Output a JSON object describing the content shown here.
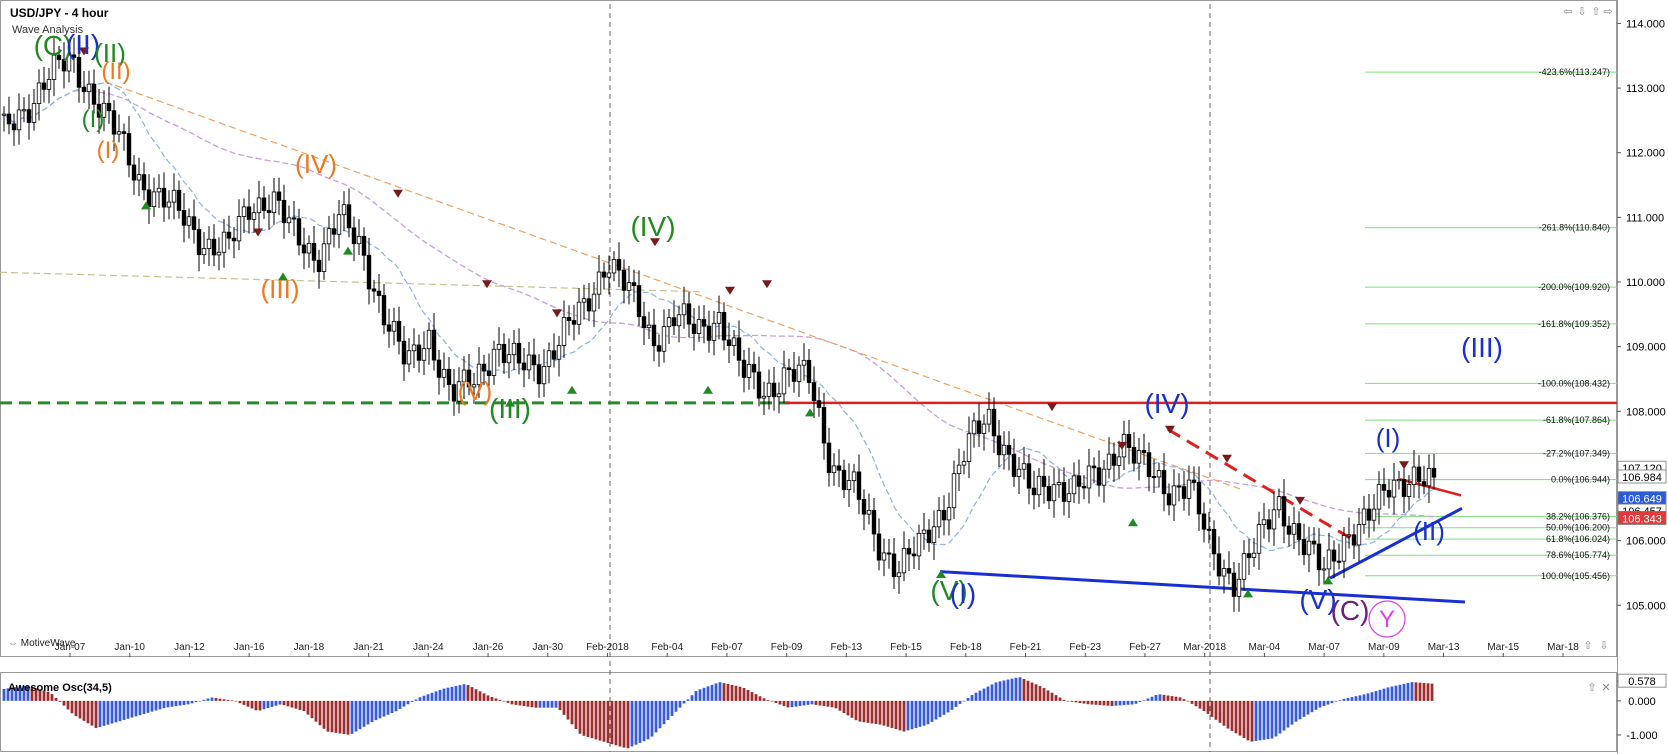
{
  "header": {
    "title": "USD/JPY - 4 hour",
    "subtitle": "Wave Analysis"
  },
  "branding": "MotiveWave",
  "oscillator": {
    "title": "Awesome Osc(34,5)",
    "ticks": [
      "0.578",
      "0.000",
      "-1.000"
    ]
  },
  "controls": {
    "nav_icons": [
      "arrow-left-icon",
      "double-down-icon",
      "double-up-icon",
      "arrow-right-icon"
    ],
    "zoom_icons": [
      "zoom-up-icon",
      "zoom-down-icon"
    ]
  },
  "colors": {
    "bull_bar": "#3a5bd9",
    "bear_bar": "#9b2d2d",
    "support": "#2a8a2a",
    "resistance": "#e02020",
    "trend": "#1a2fd1",
    "sma_fast": "#8fb0e8",
    "sma_slow": "#c8a0d8",
    "orange": "#f07820",
    "green_wave": "#1f8a1f",
    "purple": "#6a1f7a",
    "magenta": "#e040e0"
  },
  "chart_data": {
    "type": "line",
    "title": "USD/JPY - 4 hour",
    "y_axis": {
      "ticks": [
        "114.000",
        "113.000",
        "112.000",
        "111.000",
        "110.000",
        "109.000",
        "108.000",
        "107.000",
        "106.000",
        "105.000"
      ],
      "range": [
        104.2,
        114.3
      ]
    },
    "x_axis": {
      "labels": [
        "Jan-07",
        "Jan-10",
        "Jan-12",
        "Jan-16",
        "Jan-18",
        "Jan-21",
        "Jan-24",
        "Jan-26",
        "Jan-30",
        "Feb-2018",
        "Feb-04",
        "Feb-07",
        "Feb-09",
        "Feb-13",
        "Feb-15",
        "Feb-18",
        "Feb-21",
        "Feb-23",
        "Feb-27",
        "Mar-2018",
        "Mar-04",
        "Mar-07",
        "Mar-09",
        "Mar-13",
        "Mar-15",
        "Mar-18"
      ]
    },
    "series": [
      {
        "values": [
          112.3,
          112.7,
          113.2,
          113.4,
          112.9,
          112.3,
          111.6,
          111.3,
          111.0,
          110.6,
          110.5,
          111.2,
          111.3,
          110.7,
          110.4,
          111.0,
          110.5,
          109.5,
          108.7,
          109.2,
          108.2,
          108.5,
          109.0,
          108.7,
          108.7,
          109.2,
          109.6,
          110.4,
          109.8,
          109.1,
          109.5,
          109.2,
          109.5,
          108.6,
          108.3,
          108.6,
          108.5,
          107.2,
          106.8,
          106.0,
          105.6,
          105.9,
          106.5,
          107.4,
          107.9,
          107.3,
          106.7,
          106.9,
          106.8,
          107.0,
          107.6,
          107.1,
          106.8,
          106.9,
          105.8,
          105.4,
          105.9,
          106.6,
          106.0,
          105.5,
          106.1,
          106.3,
          106.9,
          107.0,
          106.8
        ]
      }
    ],
    "support_resistance": [
      108.13
    ],
    "fib_levels": [
      {
        "label": "-423.6%(113.247)",
        "value": 113.247
      },
      {
        "label": "-261.8%(110.840)",
        "value": 110.84
      },
      {
        "label": "-200.0%(109.920)",
        "value": 109.92
      },
      {
        "label": "-161.8%(109.352)",
        "value": 109.352
      },
      {
        "label": "-100.0%(108.432)",
        "value": 108.432
      },
      {
        "label": "-61.8%(107.864)",
        "value": 107.864
      },
      {
        "label": "-27.2%(107.349)",
        "value": 107.349
      },
      {
        "label": "0.0%(106.944)",
        "value": 106.944
      },
      {
        "label": "38.2%(106.376)",
        "value": 106.376
      },
      {
        "label": "50.0%(106.200)",
        "value": 106.2
      },
      {
        "label": "61.8%(106.024)",
        "value": 106.024
      },
      {
        "label": "78.6%(105.774)",
        "value": 105.774
      },
      {
        "label": "100.0%(105.456)",
        "value": 105.456
      }
    ],
    "price_tags": [
      {
        "text": "107.120",
        "value": 107.12,
        "style": "plain"
      },
      {
        "text": "106.984",
        "value": 106.984,
        "style": "plain"
      },
      {
        "text": "106.649",
        "value": 106.649,
        "style": "blue"
      },
      {
        "text": "106.457",
        "value": 106.457,
        "style": "plain"
      },
      {
        "text": "106.343",
        "value": 106.343,
        "style": "red"
      }
    ],
    "wave_labels": [
      {
        "text": "(C)",
        "color": "#1f8a1f"
      },
      {
        "text": "(II)",
        "color": "#1a2fd1"
      },
      {
        "text": "(II)",
        "color": "#1f8a1f"
      },
      {
        "text": "(II)",
        "color": "#f07820"
      },
      {
        "text": "(I)",
        "color": "#1f8a1f"
      },
      {
        "text": "(I)",
        "color": "#f07820"
      },
      {
        "text": "(IV)",
        "color": "#f07820"
      },
      {
        "text": "(III)",
        "color": "#f07820"
      },
      {
        "text": "(V)",
        "color": "#f07820"
      },
      {
        "text": "(III)",
        "color": "#1f8a1f"
      },
      {
        "text": "(IV)",
        "color": "#1f8a1f"
      },
      {
        "text": "(V)",
        "color": "#1f8a1f"
      },
      {
        "text": "(I)",
        "color": "#1a2fd1"
      },
      {
        "text": "(IV)",
        "color": "#1a2fd1"
      },
      {
        "text": "(V)",
        "color": "#1a2fd1"
      },
      {
        "text": "(C)",
        "color": "#6a1f7a"
      },
      {
        "text": "Y",
        "color": "#e040e0"
      },
      {
        "text": "(I)",
        "color": "#1a2fd1"
      },
      {
        "text": "(II)",
        "color": "#1a2fd1"
      },
      {
        "text": "(III)",
        "color": "#1a2fd1"
      }
    ],
    "oscillator_values": [
      0.35,
      0.45,
      0.25,
      -0.4,
      -0.8,
      -0.6,
      -0.4,
      -0.2,
      -0.1,
      0.1,
      0.0,
      -0.3,
      -0.1,
      -0.3,
      -0.9,
      -1.0,
      -0.6,
      -0.3,
      0.1,
      0.35,
      0.5,
      0.15,
      -0.1,
      -0.2,
      -0.2,
      -1.0,
      -1.2,
      -1.4,
      -1.1,
      -0.4,
      0.3,
      0.55,
      0.4,
      0.05,
      -0.2,
      -0.1,
      -0.2,
      -0.6,
      -0.7,
      -0.9,
      -0.7,
      -0.3,
      0.2,
      0.55,
      0.7,
      0.4,
      0.0,
      -0.1,
      -0.15,
      -0.1,
      0.2,
      0.1,
      -0.3,
      -0.8,
      -1.2,
      -1.1,
      -0.6,
      -0.2,
      0.05,
      0.2,
      0.4,
      0.55,
      0.5
    ]
  }
}
